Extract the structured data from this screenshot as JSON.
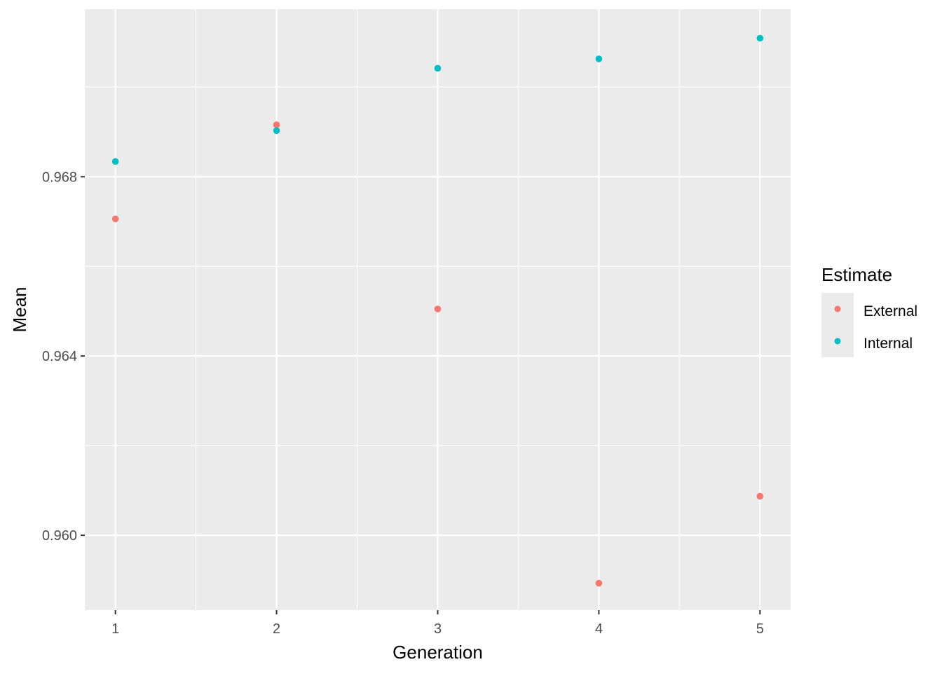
{
  "chart_data": {
    "type": "scatter",
    "xlabel": "Generation",
    "ylabel": "Mean",
    "x_ticks": [
      1,
      2,
      3,
      4,
      5
    ],
    "x_tick_labels": [
      "1",
      "2",
      "3",
      "4",
      "5"
    ],
    "y_ticks": [
      0.96,
      0.964,
      0.968
    ],
    "y_tick_labels": [
      "0.960",
      "0.964",
      "0.968"
    ],
    "xlim": [
      0.81,
      5.19
    ],
    "ylim": [
      0.95833,
      0.97174
    ],
    "grid": true,
    "legend": {
      "title": "Estimate",
      "position": "right"
    },
    "series": [
      {
        "name": "External",
        "color": "#F8766D",
        "x": [
          1,
          2,
          3,
          4,
          5
        ],
        "y": [
          0.96706,
          0.96916,
          0.96505,
          0.95893,
          0.96087
        ]
      },
      {
        "name": "Internal",
        "color": "#00BFC4",
        "x": [
          1,
          2,
          3,
          4,
          5
        ],
        "y": [
          0.96834,
          0.96903,
          0.97042,
          0.97063,
          0.97109
        ]
      }
    ],
    "colors": {
      "panel_background": "#EBEBEB",
      "grid_line": "#FFFFFF",
      "tick_label": "#4D4D4D"
    }
  }
}
